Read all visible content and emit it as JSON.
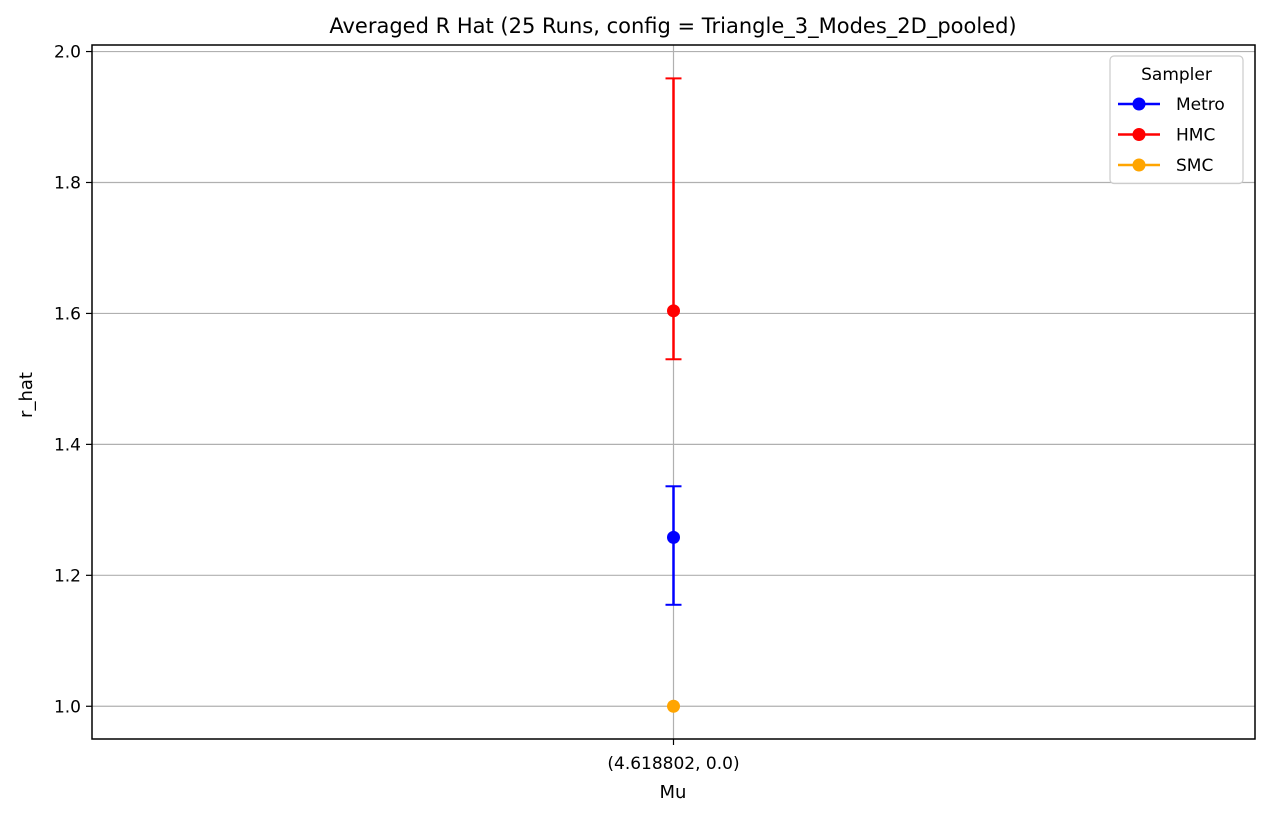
{
  "chart_data": {
    "type": "scatter",
    "title": "Averaged R Hat (25 Runs, config = Triangle_3_Modes_2D_pooled)",
    "xlabel": "Mu",
    "ylabel": "r_hat",
    "categories": [
      "(4.618802, 0.0)"
    ],
    "ylim": [
      0.95,
      2.01
    ],
    "yticks": [
      1.0,
      1.2,
      1.4,
      1.6,
      1.8,
      2.0
    ],
    "ytick_labels": [
      "1.0",
      "1.2",
      "1.4",
      "1.6",
      "1.8",
      "2.0"
    ],
    "grid": true,
    "legend": {
      "title": "Sampler",
      "position": "top-right"
    },
    "series": [
      {
        "name": "Metro",
        "color": "#0000ff",
        "values": [
          1.258
        ],
        "err_low": [
          1.155
        ],
        "err_high": [
          1.336
        ]
      },
      {
        "name": "HMC",
        "color": "#ff0000",
        "values": [
          1.604
        ],
        "err_low": [
          1.53
        ],
        "err_high": [
          1.959
        ]
      },
      {
        "name": "SMC",
        "color": "#ffa500",
        "values": [
          1.0
        ],
        "err_low": [
          1.0
        ],
        "err_high": [
          1.0
        ]
      }
    ]
  }
}
